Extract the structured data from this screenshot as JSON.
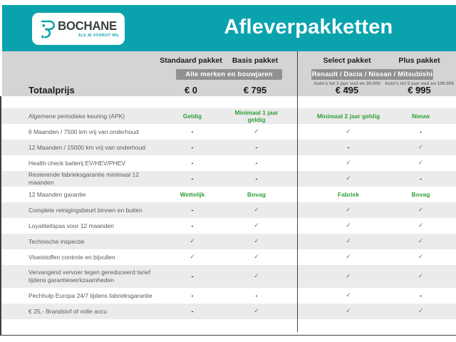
{
  "colors": {
    "teal": "#0aa3ad",
    "green": "#2f9f3a",
    "band_gray": "#d4d4d4",
    "badge_gray": "#919191",
    "stripe_gray": "#ebebeb"
  },
  "brand": {
    "name": "BOCHANE",
    "tagline": "ALS JE VOORUIT WIL"
  },
  "header": {
    "title": "Afleverpakketten"
  },
  "table": {
    "total_label": "Totaalprijs",
    "columns": [
      {
        "label": "Standaard pakket",
        "price": "€ 0",
        "note": ""
      },
      {
        "label": "Basis pakket",
        "price": "€ 795",
        "note": ""
      },
      {
        "label": "Select pakket",
        "price": "€ 495",
        "note": "Auto's tot 1 jaar oud en 20.000 km"
      },
      {
        "label": "Plus pakket",
        "price": "€ 995",
        "note": "Auto's tot 5 jaar oud en 100.000 km"
      }
    ],
    "badges": [
      {
        "label": "Alle merken en bouwjaren"
      },
      {
        "label": "Renault / Dacia / Nissan / Mitsubishi"
      }
    ],
    "rows": [
      {
        "label": "Algemene periodieke keuring (APK)",
        "values": [
          "Geldig",
          "Minimaal 1 jaar geldig",
          "Minimaal 2 jaar geldig",
          "Nieuw"
        ]
      },
      {
        "label": "6 Maanden / 7500 km vrij van onderhoud",
        "values": [
          "-",
          "✓",
          "✓",
          "-"
        ]
      },
      {
        "label": "12 Maanden / 15000 km vrij van onderhoud",
        "values": [
          "-",
          "-",
          "-",
          "✓"
        ]
      },
      {
        "label": "Health check batterij EV/HEV/PHEV",
        "values": [
          "-",
          "-",
          "✓",
          "✓"
        ]
      },
      {
        "label": "Resterende fabrieksgarantie minimaal 12 maanden",
        "values": [
          "-",
          "-",
          "✓",
          "-"
        ]
      },
      {
        "label": "12 Maanden  garantie",
        "values": [
          "Wettelijk",
          "Bovag",
          "Fabriek",
          "Bovag"
        ]
      },
      {
        "label": "Complete reinigingsbeurt binnen en buiten",
        "values": [
          "-",
          "✓",
          "✓",
          "✓"
        ]
      },
      {
        "label": "Loyaliteitspas voor 12 maanden",
        "values": [
          "-",
          "✓",
          "✓",
          "✓"
        ]
      },
      {
        "label": "Technische inspectie",
        "values": [
          "✓",
          "✓",
          "✓",
          "✓"
        ]
      },
      {
        "label": "Vloeistoffen controle en bijvullen",
        "values": [
          "✓",
          "✓",
          "✓",
          "✓"
        ]
      },
      {
        "label": "Vervangend vervoer tegen gereduceerd tarief\ntijdens garantiewerkzaamheden",
        "values": [
          "-",
          "✓",
          "✓",
          "✓"
        ]
      },
      {
        "label": "Pechhulp Europa 24/7 tijdens fabrieksgarantie",
        "values": [
          "-",
          "-",
          "✓",
          "-"
        ]
      },
      {
        "label": "€ 25,- Brandstof of  volle accu",
        "values": [
          "-",
          "✓",
          "✓",
          "✓"
        ]
      }
    ]
  }
}
